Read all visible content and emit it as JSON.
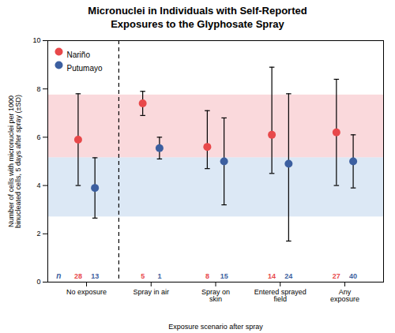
{
  "chart_data": {
    "type": "errorbar",
    "title": "Micronuclei in Individuals with Self-Reported\nExposures to the Glyphosate Spray",
    "xlabel": "Exposure scenario after spray",
    "ylabel": "Number of cells with micronuclei per 1000\nbinucleated cells, 5 days after spray (±SD)",
    "categories": [
      "No exposure",
      "Spray in air",
      "Spray on\nskin",
      "Entered sprayed\nfield",
      "Any\nexposure"
    ],
    "series": [
      {
        "name": "Nariño",
        "color": "#e8484a",
        "values": [
          5.9,
          7.4,
          5.6,
          6.1,
          6.2
        ],
        "lower": [
          4.0,
          6.9,
          4.7,
          4.5,
          4.0
        ],
        "upper": [
          7.8,
          7.9,
          7.1,
          8.9,
          8.4
        ],
        "n_labels": [
          "28",
          "5",
          "8",
          "14",
          "27"
        ]
      },
      {
        "name": "Putumayo",
        "color": "#3c5fa0",
        "values": [
          3.9,
          5.55,
          5.0,
          4.9,
          5.0
        ],
        "lower": [
          2.65,
          5.1,
          3.2,
          1.7,
          3.9
        ],
        "upper": [
          5.15,
          6.0,
          6.8,
          7.8,
          6.1
        ],
        "n_labels": [
          "13",
          "1",
          "15",
          "24",
          "40"
        ]
      }
    ],
    "bands": [
      {
        "low": 5.15,
        "high": 7.75,
        "color": "#f7c0c5"
      },
      {
        "low": 2.7,
        "high": 5.15,
        "color": "#c5d8ee"
      }
    ],
    "divider": {
      "after": "No exposure",
      "line_style": "dashed"
    },
    "annotations": [
      {
        "text": "n",
        "color": "#3c5fa0"
      }
    ],
    "ylim": [
      0,
      10
    ],
    "yticks": [
      0,
      2,
      4,
      6,
      8,
      10
    ],
    "grid": false,
    "legend": "upper left"
  }
}
